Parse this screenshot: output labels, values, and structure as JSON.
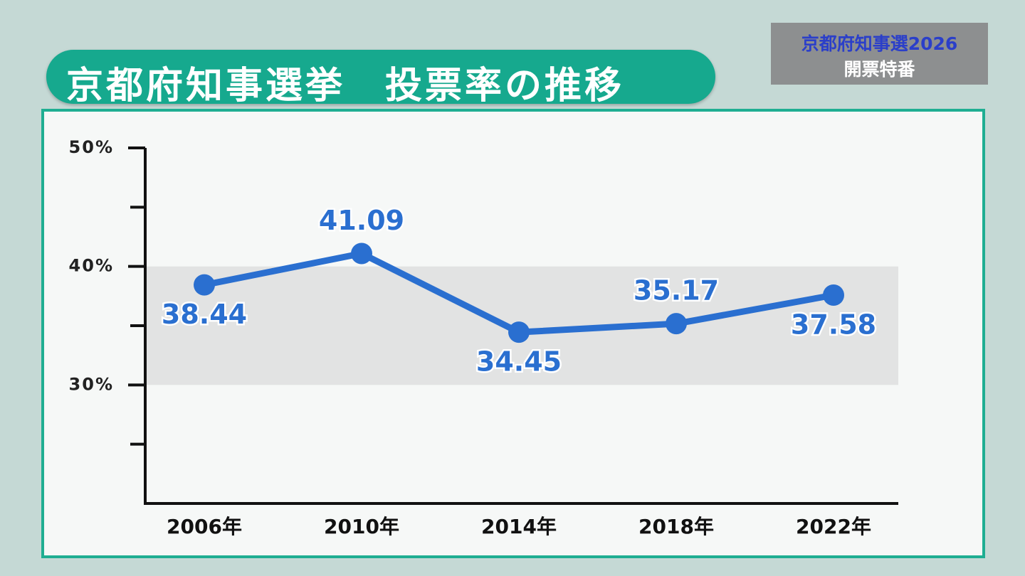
{
  "header": {
    "badge_line1": "京都府知事選2026",
    "badge_line2": "開票特番"
  },
  "chart_data": {
    "type": "line",
    "title": "京都府知事選挙　投票率の推移",
    "categories": [
      "2006年",
      "2010年",
      "2014年",
      "2018年",
      "2022年"
    ],
    "values": [
      38.44,
      41.09,
      34.45,
      35.17,
      37.58
    ],
    "color": "#2a6fd0",
    "ylim": [
      20,
      50
    ],
    "yticks": [
      {
        "value": 30,
        "label": "30%"
      },
      {
        "value": 40,
        "label": "40%"
      },
      {
        "value": 50,
        "label": "50%"
      }
    ],
    "minor_yticks": [
      25,
      35,
      45
    ],
    "band": [
      30,
      40
    ],
    "band_color": "#e2e3e3"
  }
}
